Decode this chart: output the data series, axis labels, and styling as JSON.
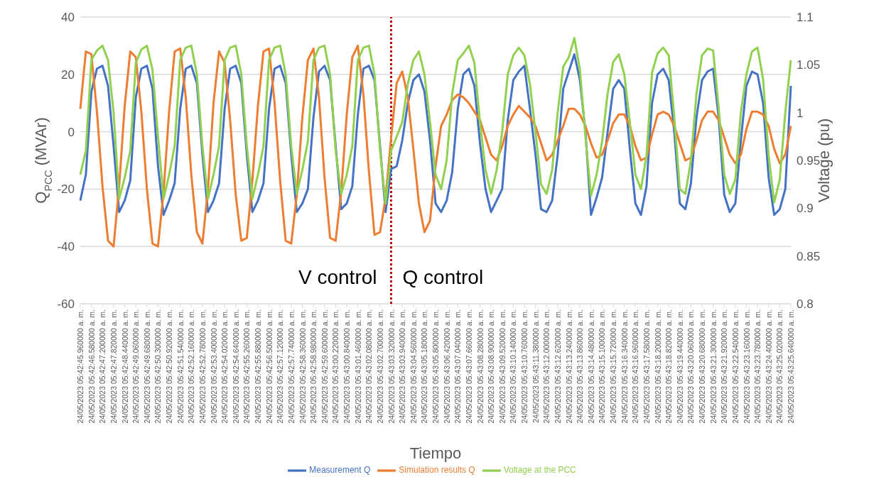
{
  "chart_data": {
    "type": "line",
    "xlabel": "Tiempo",
    "ylabel": "Q$_{PCC}$ (MVAr)",
    "y2label": "Voltage (pu)",
    "categories": [
      "24/05/2023 05:42:45.960000 a. m.",
      null,
      "24/05/2023 05:42:46.580000 a. m.",
      null,
      "24/05/2023 05:42:47.200000 a. m.",
      null,
      "24/05/2023 05:42:47.820000 a. m.",
      null,
      "24/05/2023 05:42:48.440000 a. m.",
      null,
      "24/05/2023 05:42:49.060000 a. m.",
      null,
      "24/05/2023 05:42:49.680000 a. m.",
      null,
      "24/05/2023 05:42:50.300000 a. m.",
      null,
      "24/05/2023 05:42:50.920000 a. m.",
      null,
      "24/05/2023 05:42:51.540000 a. m.",
      null,
      "24/05/2023 05:42:52.160000 a. m.",
      null,
      "24/05/2023 05:42:52.780000 a. m.",
      null,
      "24/05/2023 05:42:53.400000 a. m.",
      null,
      "24/05/2023 05:42:54.020000 a. m.",
      null,
      "24/05/2023 05:42:54.640000 a. m.",
      null,
      "24/05/2023 05:42:55.260000 a. m.",
      null,
      "24/05/2023 05:42:55.880000 a. m.",
      null,
      "24/05/2023 05:42:56.500000 a. m.",
      null,
      "24/05/2023 05:42:57.120000 a. m.",
      null,
      "24/05/2023 05:42:57.740000 a. m.",
      null,
      "24/05/2023 05:42:58.360000 a. m.",
      null,
      "24/05/2023 05:42:58.980000 a. m.",
      null,
      "24/05/2023 05:42:59.600000 a. m.",
      null,
      "24/05/2023 05:43:00.220000 a. m.",
      null,
      "24/05/2023 05:43:00.840000 a. m.",
      null,
      "24/05/2023 05:43:01.460000 a. m.",
      null,
      "24/05/2023 05:43:02.080000 a. m.",
      null,
      "24/05/2023 05:43:02.700000 a. m.",
      null,
      "24/05/2023 05:43:03.320000 a. m.",
      null,
      "24/05/2023 05:43:03.940000 a. m.",
      null,
      "24/05/2023 05:43:04.560000 a. m.",
      null,
      "24/05/2023 05:43:05.180000 a. m.",
      null,
      "24/05/2023 05:43:05.800000 a. m.",
      null,
      "24/05/2023 05:43:06.420000 a. m.",
      null,
      "24/05/2023 05:43:07.040000 a. m.",
      null,
      "24/05/2023 05:43:07.660000 a. m.",
      null,
      "24/05/2023 05:43:08.280000 a. m.",
      null,
      "24/05/2023 05:43:08.900000 a. m.",
      null,
      "24/05/2023 05:43:09.520000 a. m.",
      null,
      "24/05/2023 05:43:10.140000 a. m.",
      null,
      "24/05/2023 05:43:10.760000 a. m.",
      null,
      "24/05/2023 05:43:11.380000 a. m.",
      null,
      "24/05/2023 05:43:12.000000 a. m.",
      null,
      "24/05/2023 05:43:12.620000 a. m.",
      null,
      "24/05/2023 05:43:13.240000 a. m.",
      null,
      "24/05/2023 05:43:13.860000 a. m.",
      null,
      "24/05/2023 05:43:14.480000 a. m.",
      null,
      "24/05/2023 05:43:15.100000 a. m.",
      null,
      "24/05/2023 05:43:15.720000 a. m.",
      null,
      "24/05/2023 05:43:16.340000 a. m.",
      null,
      "24/05/2023 05:43:16.960000 a. m.",
      null,
      "24/05/2023 05:43:17.580000 a. m.",
      null,
      "24/05/2023 05:43:18.200000 a. m.",
      null,
      "24/05/2023 05:43:18.820000 a. m.",
      null,
      "24/05/2023 05:43:19.440000 a. m.",
      null,
      "24/05/2023 05:43:20.060000 a. m.",
      null,
      "24/05/2023 05:43:20.680000 a. m.",
      null,
      "24/05/2023 05:43:21.300000 a. m.",
      null,
      "24/05/2023 05:43:21.920000 a. m.",
      null,
      "24/05/2023 05:43:22.540000 a. m.",
      null,
      "24/05/2023 05:43:23.160000 a. m.",
      null,
      "24/05/2023 05:43:23.780000 a. m.",
      null,
      "24/05/2023 05:43:24.400000 a. m.",
      null,
      "24/05/2023 05:43:25.020000 a. m.",
      null,
      "24/05/2023 05:43:25.640000 a. m."
    ],
    "series": [
      {
        "name": "Measurement Q",
        "color": "#4472c4",
        "values": [
          -24,
          -15,
          14,
          22,
          23,
          16,
          -5,
          -28,
          -24,
          -17,
          12,
          22,
          23,
          15,
          -12,
          -29,
          -24,
          -18,
          8,
          22,
          23,
          17,
          -8,
          -28,
          -24,
          -18,
          8,
          22,
          23,
          17,
          -8,
          -28,
          -24,
          -18,
          8,
          22,
          23,
          17,
          -8,
          -28,
          -25,
          -20,
          5,
          21,
          23,
          18,
          -5,
          -27,
          -25,
          -19,
          6,
          22,
          23,
          18,
          -5,
          -28,
          -13,
          -12,
          -3,
          10,
          18,
          20,
          14,
          -3,
          -25,
          -28,
          -24,
          -14,
          8,
          20,
          22,
          16,
          -4,
          -20,
          -28,
          -24,
          -20,
          4,
          18,
          21,
          23,
          8,
          -8,
          -27,
          -28,
          -24,
          -8,
          15,
          21,
          27,
          18,
          0,
          -29,
          -23,
          -16,
          0,
          15,
          18,
          15,
          -6,
          -25,
          -29,
          -19,
          10,
          20,
          22,
          18,
          0,
          -25,
          -27,
          -18,
          5,
          18,
          21,
          22,
          5,
          -22,
          -28,
          -25,
          -3,
          16,
          21,
          20,
          10,
          -16,
          -29,
          -27,
          -20,
          16
        ]
      },
      {
        "name": "Simulation results Q",
        "color": "#ed7d31",
        "values": [
          8,
          28,
          27,
          7,
          -19,
          -38,
          -40,
          -19,
          9,
          28,
          26,
          7,
          -20,
          -39,
          -40,
          -21,
          7,
          28,
          29,
          12,
          -15,
          -35,
          -39,
          -20,
          10,
          28,
          24,
          4,
          -22,
          -38,
          -37,
          -17,
          9,
          28,
          29,
          10,
          -17,
          -38,
          -39,
          -22,
          5,
          25,
          29,
          12,
          -16,
          -37,
          -38,
          -21,
          6,
          26,
          30,
          13,
          -14,
          -36,
          -35,
          -23,
          -2,
          17,
          21,
          12,
          -6,
          -25,
          -35,
          -31,
          -12,
          2,
          6,
          11,
          13,
          12,
          10,
          7,
          4,
          -2,
          -8,
          -10,
          -5,
          2,
          6,
          9,
          7,
          5,
          2,
          -4,
          -10,
          -8,
          -3,
          2,
          8,
          8,
          6,
          2,
          -4,
          -9,
          -8,
          -3,
          3,
          6,
          6,
          2,
          -5,
          -10,
          -9,
          -1,
          6,
          7,
          6,
          2,
          -4,
          -10,
          -9,
          -3,
          4,
          7,
          7,
          4,
          -2,
          -8,
          -11,
          -8,
          1,
          7,
          7,
          6,
          2,
          -6,
          -11,
          -8,
          2
        ]
      },
      {
        "name": "Voltage at the PCC",
        "color": "#92d050",
        "axis": "y2",
        "values": [
          0.935,
          0.96,
          1.055,
          1.065,
          1.07,
          1.055,
          1.0,
          0.91,
          0.932,
          0.96,
          1.052,
          1.066,
          1.07,
          1.045,
          0.975,
          0.91,
          0.935,
          0.965,
          1.055,
          1.068,
          1.07,
          1.04,
          0.965,
          0.91,
          0.935,
          0.965,
          1.055,
          1.068,
          1.07,
          1.04,
          0.965,
          0.91,
          0.935,
          0.965,
          1.055,
          1.068,
          1.07,
          1.04,
          0.965,
          0.915,
          0.94,
          0.97,
          1.055,
          1.068,
          1.07,
          1.04,
          0.96,
          0.915,
          0.935,
          0.965,
          1.055,
          1.068,
          1.07,
          1.04,
          0.96,
          0.905,
          0.96,
          0.975,
          0.99,
          1.03,
          1.055,
          1.064,
          1.04,
          0.99,
          0.935,
          0.92,
          0.95,
          1.02,
          1.055,
          1.062,
          1.07,
          1.052,
          0.99,
          0.94,
          0.915,
          0.94,
          0.98,
          1.04,
          1.06,
          1.068,
          1.06,
          1.03,
          0.98,
          0.925,
          0.915,
          0.94,
          1.0,
          1.048,
          1.058,
          1.078,
          1.045,
          0.975,
          0.913,
          0.935,
          0.97,
          1.02,
          1.053,
          1.061,
          1.04,
          0.99,
          0.935,
          0.92,
          0.955,
          1.042,
          1.062,
          1.068,
          1.06,
          0.995,
          0.92,
          0.915,
          0.95,
          1.02,
          1.06,
          1.067,
          1.065,
          1.005,
          0.935,
          0.915,
          0.93,
          1.0,
          1.04,
          1.064,
          1.068,
          1.035,
          0.955,
          0.906,
          0.93,
          1.0,
          1.055
        ]
      }
    ],
    "ylim": [
      -60,
      40
    ],
    "yticks": [
      -60,
      -40,
      -20,
      0,
      20,
      40
    ],
    "y2lim": [
      0.8,
      1.1
    ],
    "y2ticks": [
      0.8,
      0.85,
      0.9,
      0.95,
      1,
      1.05,
      1.1
    ],
    "grid": "y",
    "legend": "bottom",
    "line_style": "solid",
    "ref_lines": [
      {
        "axis": "x",
        "value": "24/05/2023 05:43:03.320000 a. m.",
        "color": "#c00000",
        "line_style": "dotted"
      }
    ],
    "annotations": [
      "V control",
      "Q control"
    ]
  }
}
